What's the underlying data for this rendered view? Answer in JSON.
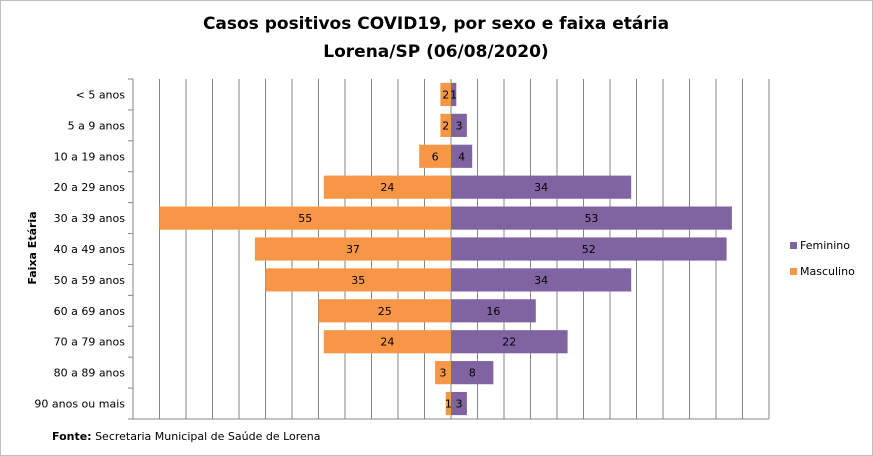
{
  "chart_data": {
    "type": "bar",
    "orientation": "horizontal-population-pyramid",
    "title_line1": "Casos positivos  COVID19, por sexo e faixa etária",
    "title_line2": "Lorena/SP (06/08/2020)",
    "ylabel": "Faixa Etária",
    "xlabel": "",
    "categories": [
      "< 5 anos",
      "5 a 9 anos",
      "10 a 19 anos",
      "20 a 29 anos",
      "30 a 39 anos",
      "40 a 49 anos",
      "50 a 59 anos",
      "60 a 69 anos",
      "70 a 79 anos",
      "80 a 89 anos",
      "90 anos ou mais"
    ],
    "series": [
      {
        "name": "Feminino",
        "values": [
          1,
          3,
          4,
          34,
          53,
          52,
          34,
          16,
          22,
          8,
          3
        ],
        "color": "#8064a2",
        "side": "right"
      },
      {
        "name": "Masculino",
        "values": [
          2,
          2,
          6,
          24,
          55,
          37,
          35,
          25,
          24,
          3,
          1
        ],
        "color": "#f79646",
        "side": "left"
      }
    ],
    "xlim": [
      -60,
      60
    ],
    "grid": "vertical",
    "legend_position": "right"
  },
  "footer": {
    "source_label": "Fonte:",
    "source_text": " Secretaria Municipal de Saúde de Lorena"
  }
}
